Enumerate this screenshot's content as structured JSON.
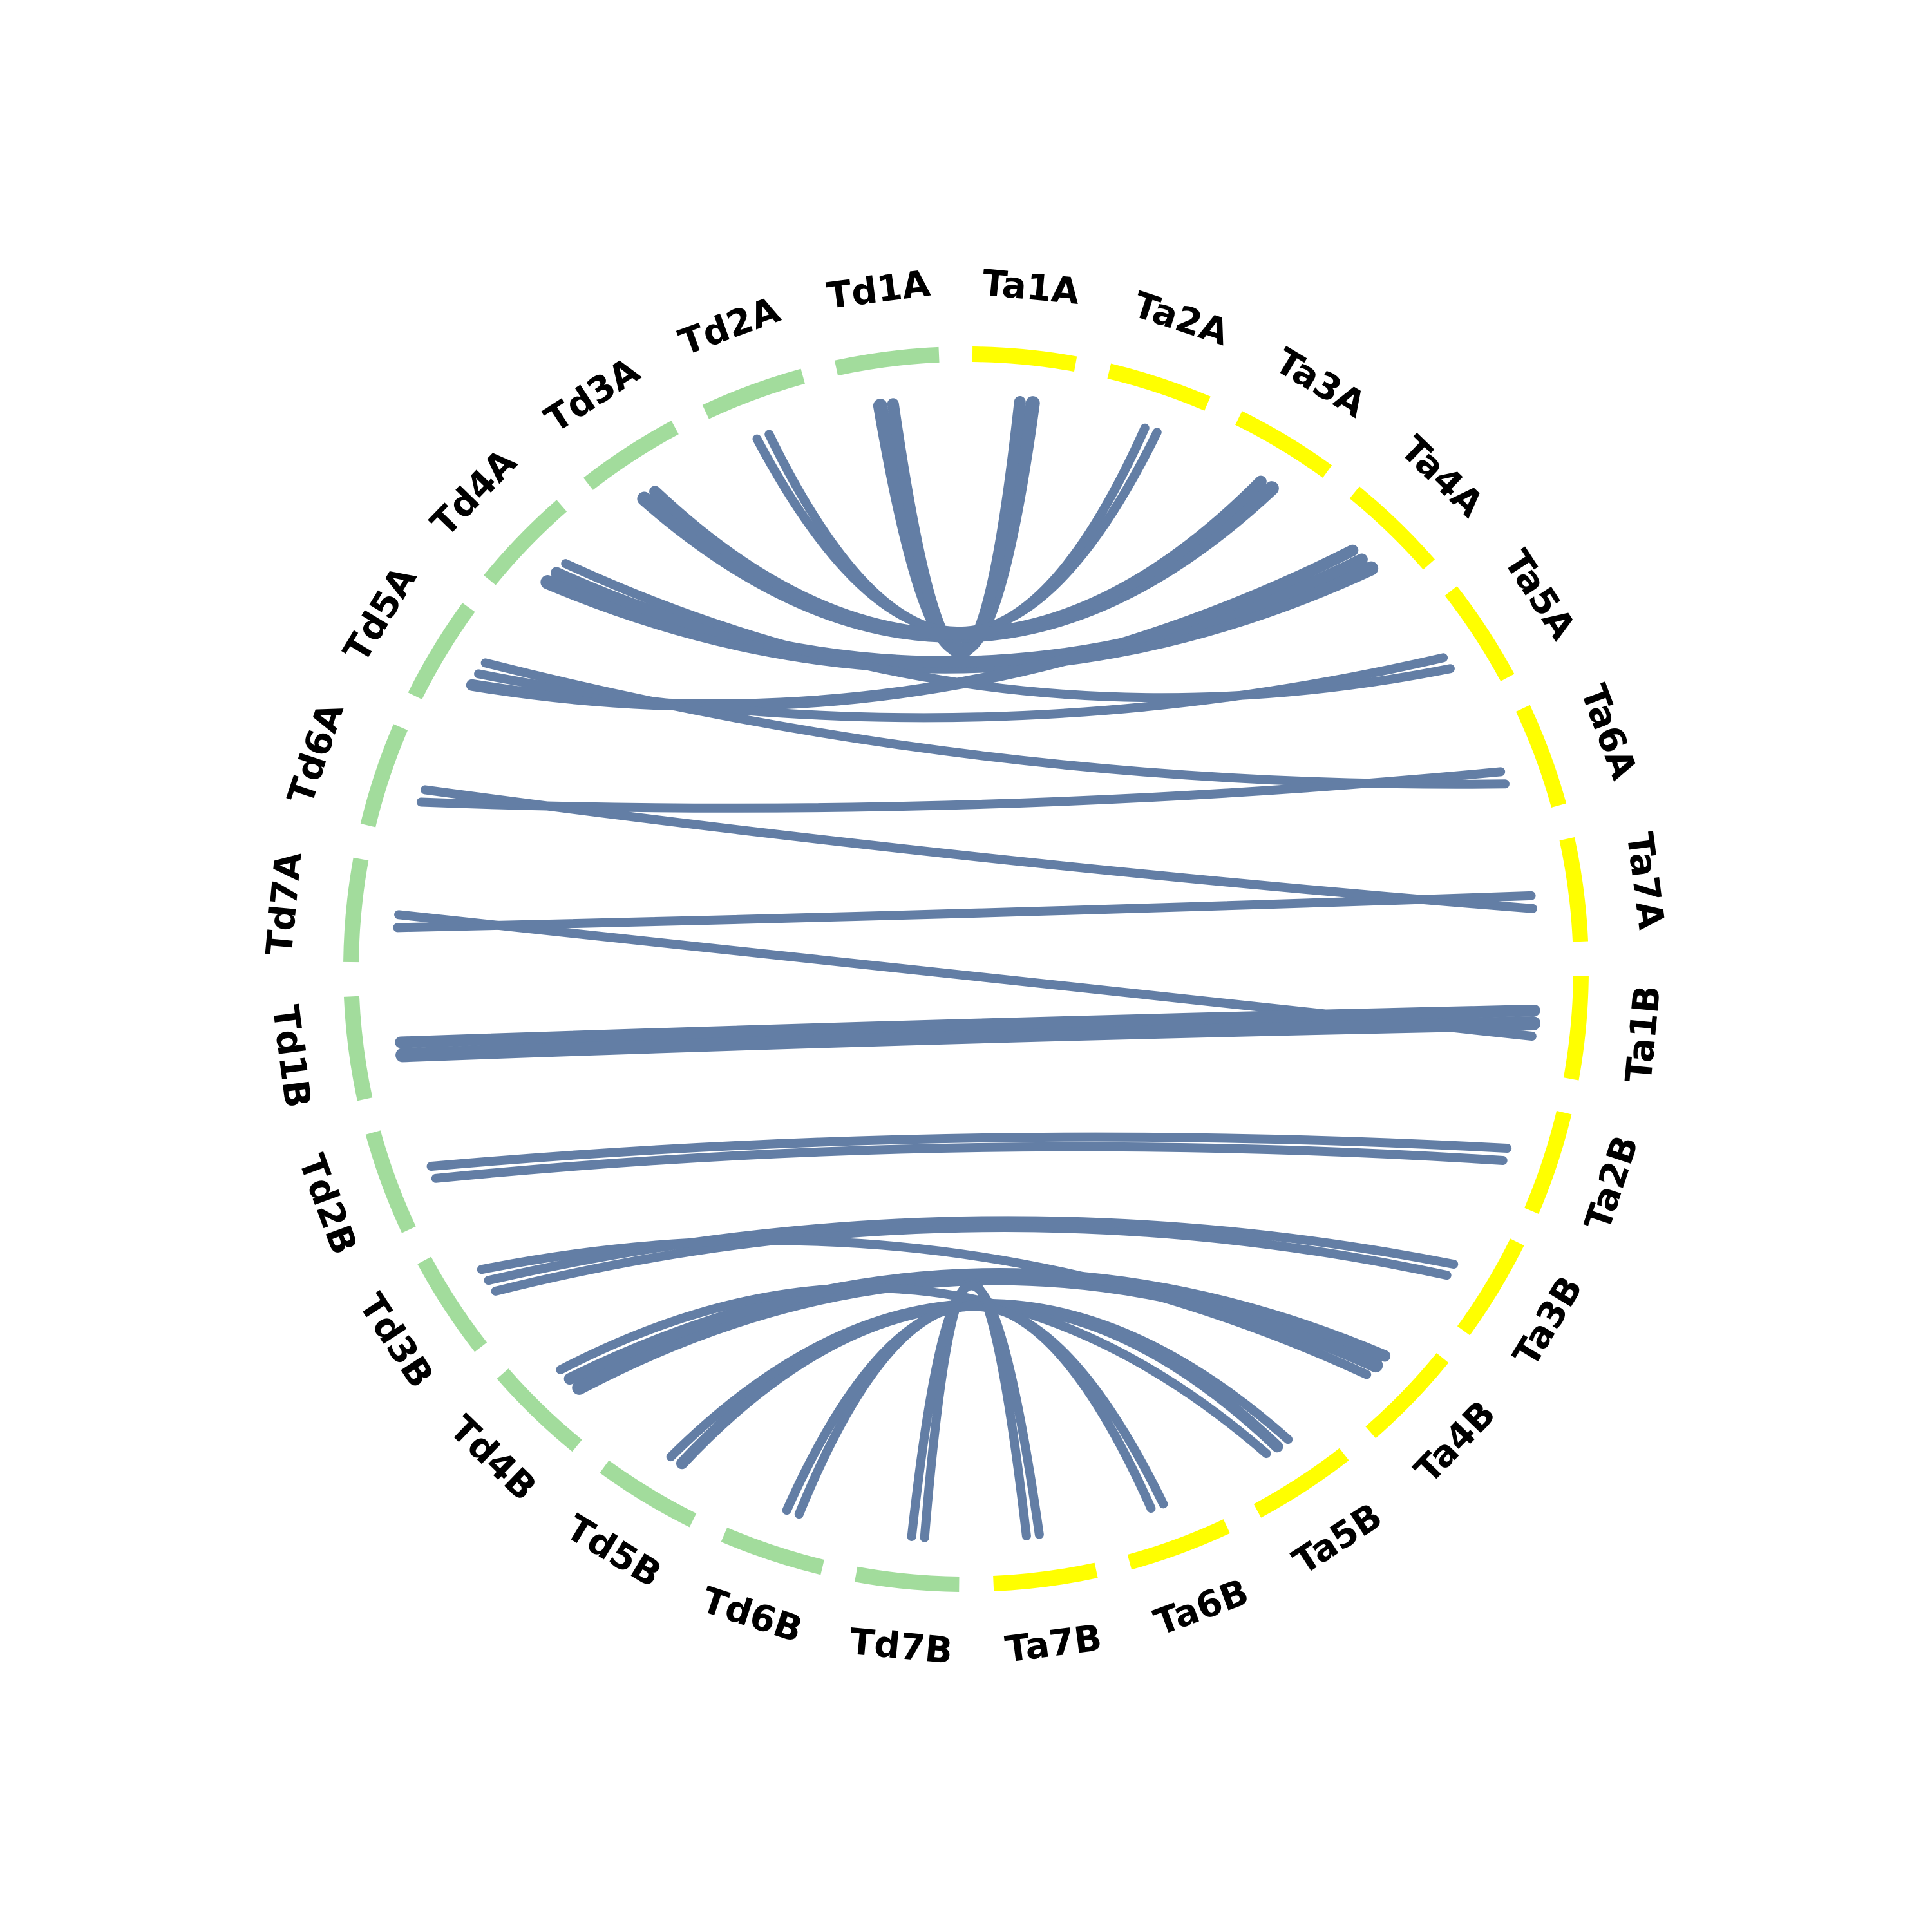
{
  "colors": {
    "td_segment": "#a2dc9c",
    "ta_segment": "#ffff00",
    "link": "#637ea5",
    "label": "#000000"
  },
  "segments": [
    {
      "id": "Ta1A",
      "label": "Ta1A",
      "group": "Ta"
    },
    {
      "id": "Ta2A",
      "label": "Ta2A",
      "group": "Ta"
    },
    {
      "id": "Ta3A",
      "label": "Ta3A",
      "group": "Ta"
    },
    {
      "id": "Ta4A",
      "label": "Ta4A",
      "group": "Ta"
    },
    {
      "id": "Ta5A",
      "label": "Ta5A",
      "group": "Ta"
    },
    {
      "id": "Ta6A",
      "label": "Ta6A",
      "group": "Ta"
    },
    {
      "id": "Ta7A",
      "label": "Ta7A",
      "group": "Ta"
    },
    {
      "id": "Ta1B",
      "label": "Ta1B",
      "group": "Ta"
    },
    {
      "id": "Ta2B",
      "label": "Ta2B",
      "group": "Ta"
    },
    {
      "id": "Ta3B",
      "label": "Ta3B",
      "group": "Ta"
    },
    {
      "id": "Ta4B",
      "label": "Ta4B",
      "group": "Ta"
    },
    {
      "id": "Ta5B",
      "label": "Ta5B",
      "group": "Ta"
    },
    {
      "id": "Ta6B",
      "label": "Ta6B",
      "group": "Ta"
    },
    {
      "id": "Ta7B",
      "label": "Ta7B",
      "group": "Ta"
    },
    {
      "id": "Td7B",
      "label": "Td7B",
      "group": "Td"
    },
    {
      "id": "Td6B",
      "label": "Td6B",
      "group": "Td"
    },
    {
      "id": "Td5B",
      "label": "Td5B",
      "group": "Td"
    },
    {
      "id": "Td4B",
      "label": "Td4B",
      "group": "Td"
    },
    {
      "id": "Td3B",
      "label": "Td3B",
      "group": "Td"
    },
    {
      "id": "Td2B",
      "label": "Td2B",
      "group": "Td"
    },
    {
      "id": "Td1B",
      "label": "Td1B",
      "group": "Td"
    },
    {
      "id": "Td7A",
      "label": "Td7A",
      "group": "Td"
    },
    {
      "id": "Td6A",
      "label": "Td6A",
      "group": "Td"
    },
    {
      "id": "Td5A",
      "label": "Td5A",
      "group": "Td"
    },
    {
      "id": "Td4A",
      "label": "Td4A",
      "group": "Td"
    },
    {
      "id": "Td3A",
      "label": "Td3A",
      "group": "Td"
    },
    {
      "id": "Td2A",
      "label": "Td2A",
      "group": "Td"
    },
    {
      "id": "Td1A",
      "label": "Td1A",
      "group": "Td"
    }
  ],
  "links": [
    {
      "from": "Td1A",
      "to": "Ta1A",
      "weight": 3
    },
    {
      "from": "Td1A",
      "to": "Ta1A",
      "weight": 2
    },
    {
      "from": "Td2A",
      "to": "Ta2A",
      "weight": 1
    },
    {
      "from": "Td2A",
      "to": "Ta2A",
      "weight": 1
    },
    {
      "from": "Td3A",
      "to": "Ta3A",
      "weight": 3
    },
    {
      "from": "Td3A",
      "to": "Ta3A",
      "weight": 2
    },
    {
      "from": "Td4A",
      "to": "Ta4A",
      "weight": 3
    },
    {
      "from": "Td4A",
      "to": "Ta4A",
      "weight": 2
    },
    {
      "from": "Td4A",
      "to": "Ta5A",
      "weight": 1
    },
    {
      "from": "Td5A",
      "to": "Ta4A",
      "weight": 2
    },
    {
      "from": "Td5A",
      "to": "Ta5A",
      "weight": 1
    },
    {
      "from": "Td5A",
      "to": "Ta6A",
      "weight": 1
    },
    {
      "from": "Td6A",
      "to": "Ta6A",
      "weight": 1
    },
    {
      "from": "Td6A",
      "to": "Ta7A",
      "weight": 1
    },
    {
      "from": "Td7A",
      "to": "Ta7A",
      "weight": 1
    },
    {
      "from": "Td7A",
      "to": "Ta1B",
      "weight": 1
    },
    {
      "from": "Td1B",
      "to": "Ta1B",
      "weight": 3
    },
    {
      "from": "Td1B",
      "to": "Ta1B",
      "weight": 2
    },
    {
      "from": "Td2B",
      "to": "Ta2B",
      "weight": 1
    },
    {
      "from": "Td2B",
      "to": "Ta2B",
      "weight": 1
    },
    {
      "from": "Td3B",
      "to": "Ta3B",
      "weight": 1
    },
    {
      "from": "Td3B",
      "to": "Ta3B",
      "weight": 1
    },
    {
      "from": "Td3B",
      "to": "Ta4B",
      "weight": 1
    },
    {
      "from": "Td4B",
      "to": "Ta4B",
      "weight": 3
    },
    {
      "from": "Td4B",
      "to": "Ta4B",
      "weight": 2
    },
    {
      "from": "Td4B",
      "to": "Ta5B",
      "weight": 1
    },
    {
      "from": "Td5B",
      "to": "Ta5B",
      "weight": 2
    },
    {
      "from": "Td5B",
      "to": "Ta5B",
      "weight": 1
    },
    {
      "from": "Td6B",
      "to": "Ta6B",
      "weight": 1
    },
    {
      "from": "Td6B",
      "to": "Ta6B",
      "weight": 1
    },
    {
      "from": "Td7B",
      "to": "Ta7B",
      "weight": 1
    },
    {
      "from": "Td7B",
      "to": "Ta7B",
      "weight": 1
    }
  ]
}
